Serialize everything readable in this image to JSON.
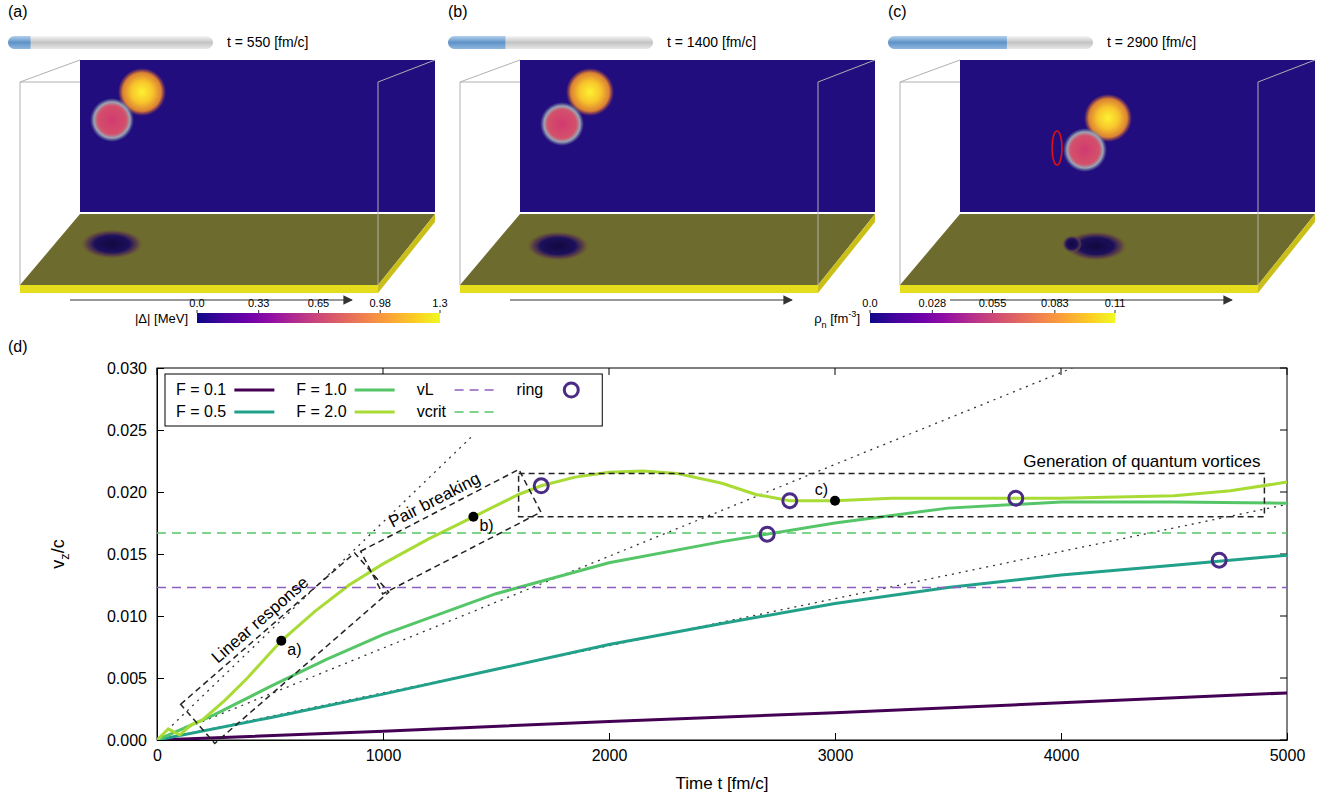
{
  "panels": [
    {
      "letter": "(a)",
      "time_prefix": "t = ",
      "time": 550,
      "time_unit": "[fm/c]"
    },
    {
      "letter": "(b)",
      "time_prefix": "t = ",
      "time": 1400,
      "time_unit": "[fm/c]"
    },
    {
      "letter": "(c)",
      "time_prefix": "t = ",
      "time": 2900,
      "time_unit": "[fm/c]"
    }
  ],
  "colorbars": [
    {
      "label_parts": [
        {
          "text": "|Δ| [MeV]"
        }
      ],
      "range": [
        0,
        1.3
      ],
      "ticks": [
        {
          "value": 0,
          "label": "0.0"
        },
        0.33,
        0.65,
        0.98,
        1.3
      ]
    },
    {
      "label_parts": [
        {
          "text": "ρ"
        },
        {
          "text": "n",
          "sub": true
        },
        {
          "text": " [fm"
        },
        {
          "text": "-3",
          "sup": true
        },
        {
          "text": "]"
        }
      ],
      "range": [
        0,
        0.11
      ],
      "ticks": [
        {
          "value": 0,
          "label": "0.0"
        },
        0.028,
        0.055,
        0.083,
        0.11
      ]
    }
  ],
  "chart_data": {
    "type": "line",
    "panel_label": "(d)",
    "x_label": "Time t [fm/c]",
    "y_label_parts": [
      {
        "text": "v"
      },
      {
        "text": "z",
        "sub": true
      },
      {
        "text": "/c"
      }
    ],
    "xlim": [
      0,
      5000
    ],
    "xticks": [
      0,
      1000,
      2000,
      3000,
      4000,
      5000
    ],
    "ylim": [
      0,
      0.03
    ],
    "yticks": [
      {
        "value": 0,
        "label": "0.000"
      },
      0.005,
      {
        "value": 0.01,
        "label": "0.010"
      },
      0.015,
      {
        "value": 0.02,
        "label": "0.020"
      },
      0.025,
      {
        "value": 0.03,
        "label": "0.030"
      }
    ],
    "legend": "upper left",
    "series": [
      {
        "name": "F = 0.1",
        "color": "#440154",
        "x": [
          0,
          1000,
          2000,
          3000,
          4000,
          5000
        ],
        "values": [
          0,
          0.0007,
          0.0015,
          0.0022,
          0.003,
          0.0038
        ]
      },
      {
        "name": "F = 0.5",
        "color": "#21a08a",
        "x": [
          0,
          500,
          1000,
          1500,
          2000,
          2500,
          3000,
          3500,
          4000,
          4500,
          5000
        ],
        "values": [
          0,
          0.0018,
          0.0037,
          0.0057,
          0.0077,
          0.0094,
          0.011,
          0.0123,
          0.0133,
          0.0141,
          0.0149
        ]
      },
      {
        "name": "F = 1.0",
        "color": "#55c667",
        "x": [
          0,
          100,
          250,
          500,
          750,
          1000,
          1500,
          2000,
          2500,
          3000,
          3500,
          4000,
          4500,
          5000
        ],
        "values": [
          0,
          0.0008,
          0.002,
          0.0043,
          0.0065,
          0.0085,
          0.0118,
          0.0143,
          0.016,
          0.0175,
          0.0187,
          0.0192,
          0.0192,
          0.0191
        ]
      },
      {
        "name": "F = 2.0",
        "color": "#a8db34",
        "x": [
          0,
          50,
          100,
          150,
          200,
          300,
          400,
          550,
          700,
          850,
          1000,
          1200,
          1400,
          1600,
          1700,
          1850,
          2000,
          2150,
          2300,
          2500,
          2650,
          2800,
          3000,
          3250,
          3500,
          3750,
          4000,
          4250,
          4500,
          4750,
          5000
        ],
        "values": [
          0,
          0.0009,
          0.0004,
          0.0012,
          0.0016,
          0.0032,
          0.005,
          0.008,
          0.0104,
          0.0125,
          0.0142,
          0.0162,
          0.018,
          0.0198,
          0.0205,
          0.0212,
          0.0216,
          0.0217,
          0.0215,
          0.0207,
          0.0198,
          0.0193,
          0.0193,
          0.0195,
          0.0195,
          0.0195,
          0.0195,
          0.0196,
          0.0197,
          0.0201,
          0.0208
        ]
      },
      {
        "name": "vL",
        "color": "#8e5fc2",
        "line_style": "dashed",
        "x": [
          0,
          5000
        ],
        "values": [
          0.0123,
          0.0123
        ]
      },
      {
        "name": "vcrit",
        "color": "#55c667",
        "line_style": "dashed",
        "x": [
          0,
          5000
        ],
        "values": [
          0.0167,
          0.0167
        ]
      },
      {
        "name": "ring",
        "type": "scatter",
        "marker": "circle",
        "color": "#4b2c85",
        "x": [
          1700,
          2800,
          3800,
          2700,
          4700
        ],
        "values": [
          0.0205,
          0.0193,
          0.0195,
          0.0166,
          0.0145
        ]
      }
    ],
    "guide_lines": [
      {
        "color": "#333333",
        "line_style": "dotted",
        "x": [
          0,
          1400
        ],
        "values": [
          0,
          0.0246
        ]
      },
      {
        "color": "#333333",
        "line_style": "dotted",
        "x": [
          0,
          4050
        ],
        "values": [
          0,
          0.03
        ]
      },
      {
        "color": "#333333",
        "line_style": "dotted",
        "x": [
          0,
          5000
        ],
        "values": [
          0,
          0.019
        ]
      }
    ],
    "annotations": [
      {
        "text": "a)",
        "x": 550,
        "y": 0.008
      },
      {
        "text": "b)",
        "x": 1400,
        "y": 0.018
      },
      {
        "text": "c)",
        "x": 3000,
        "y": 0.0193
      }
    ],
    "regions": [
      {
        "text": "Linear response",
        "from": [
          180,
          0.0013
        ],
        "to": [
          950,
          0.0135
        ]
      },
      {
        "text": "Pair breaking",
        "from": [
          950,
          0.0135
        ],
        "to": [
          1650,
          0.0201
        ]
      },
      {
        "text": "Generation of quantum vortices",
        "x": [
          1600,
          4900
        ],
        "y": [
          0.018,
          0.0215
        ]
      }
    ]
  }
}
